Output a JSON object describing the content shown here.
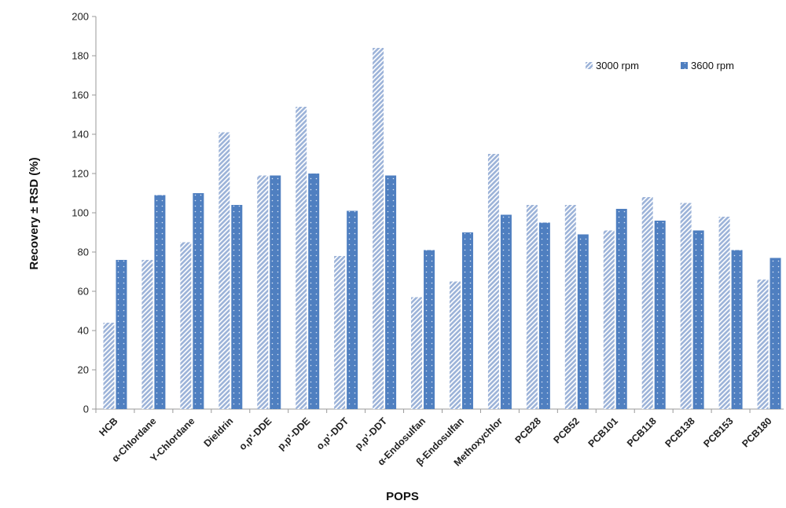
{
  "chart_data": {
    "type": "bar",
    "title": "",
    "xlabel": "POPS",
    "ylabel": "Recovery ± RSD (%)",
    "ylim": [
      0,
      200
    ],
    "yticks": [
      0,
      20,
      40,
      60,
      80,
      100,
      120,
      140,
      160,
      180,
      200
    ],
    "grid": false,
    "legend_position": "top-right",
    "categories": [
      "HCB",
      "α-Chlordane",
      "Υ-Chlordane",
      "Dieldrin",
      "o,p'-DDE",
      "p,p'-DDE",
      "o,p'-DDT",
      "p,p'-DDT",
      "α-Endosulfan",
      "β-Endosulfan",
      "Methoxychlor",
      "PCB28",
      "PCB52",
      "PCB101",
      "PCB118",
      "PCB138",
      "PCB153",
      "PCB180"
    ],
    "series": [
      {
        "name": "3000 rpm",
        "color": "#9db4d9",
        "pattern": "hatched",
        "values": [
          44,
          76,
          85,
          141,
          119,
          154,
          78,
          184,
          57,
          65,
          130,
          104,
          104,
          91,
          108,
          105,
          98,
          66
        ]
      },
      {
        "name": "3600 rpm",
        "color": "#4f7fc0",
        "pattern": "dotted",
        "values": [
          76,
          109,
          110,
          104,
          119,
          120,
          101,
          119,
          81,
          90,
          99,
          95,
          89,
          102,
          96,
          91,
          81,
          77
        ]
      }
    ]
  }
}
